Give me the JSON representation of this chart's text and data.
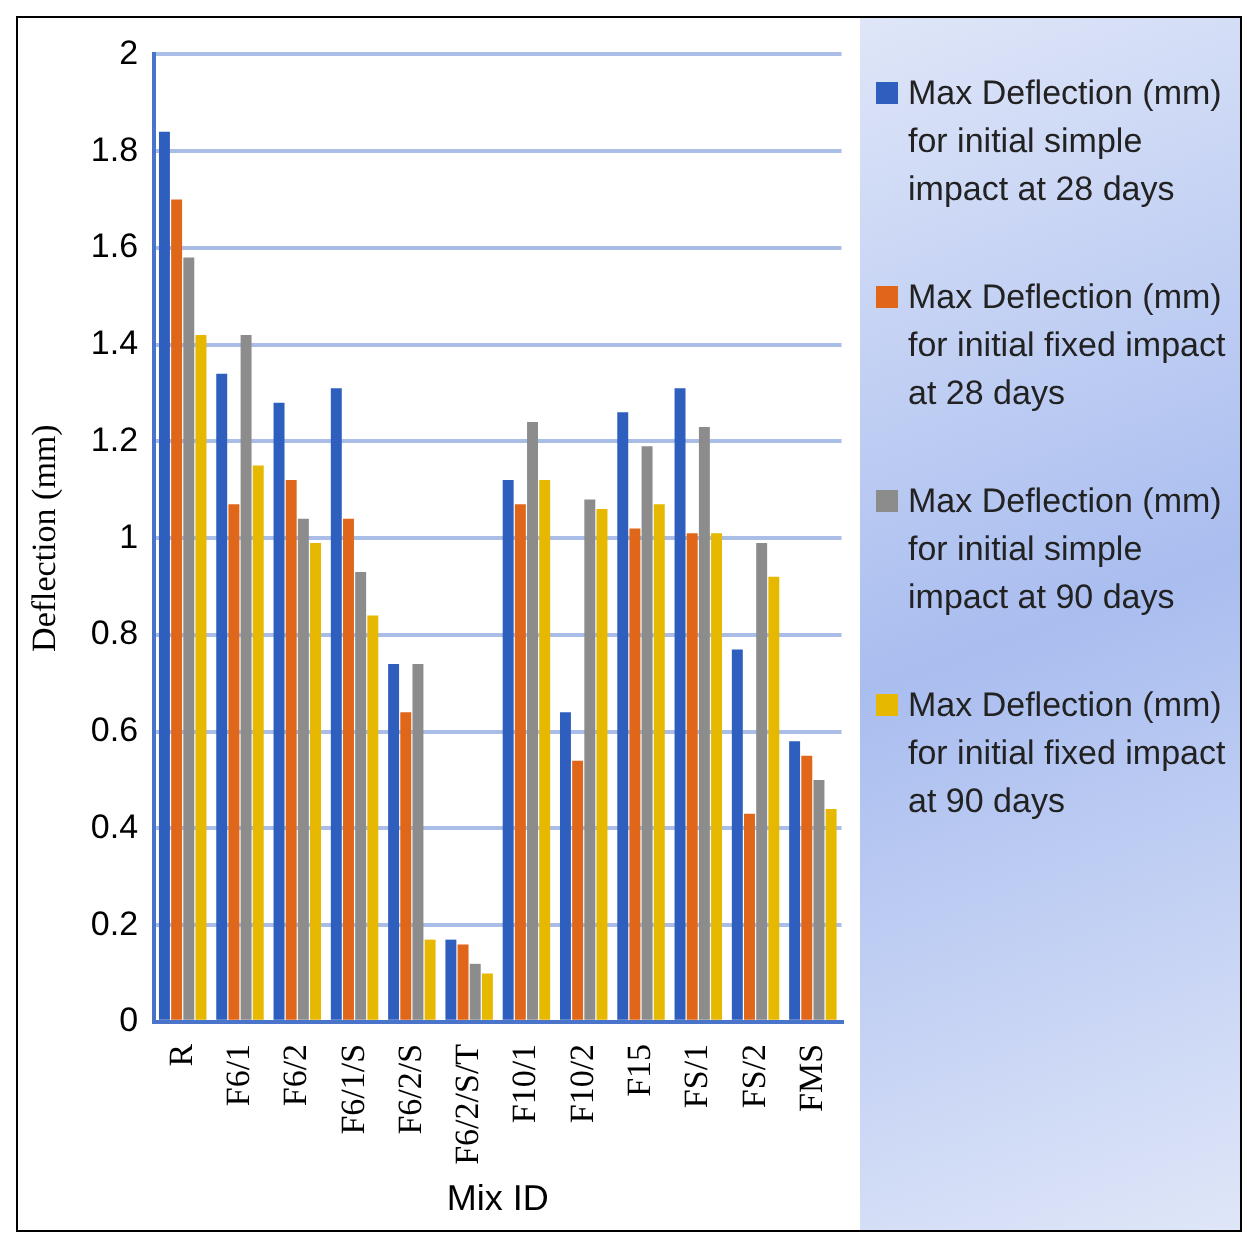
{
  "chart_data": {
    "type": "bar",
    "xlabel": "Mix ID",
    "ylabel": "Deflection (mm)",
    "categories": [
      "R",
      "F6/1",
      "F6/2",
      "F6/1/S",
      "F6/2/S",
      "F6/2/S/T",
      "F10/1",
      "F10/2",
      "F15",
      "FS/1",
      "FS/2",
      "FMS"
    ],
    "series": [
      {
        "name": "Max Deflection (mm) for initial simple impact at 28 days",
        "color": "#2e5fbf",
        "values": [
          1.84,
          1.34,
          1.28,
          1.31,
          0.74,
          0.17,
          1.12,
          0.64,
          1.26,
          1.31,
          0.77,
          0.58
        ]
      },
      {
        "name": "Max Deflection (mm) for initial fixed impact at 28 days",
        "color": "#e0661a",
        "values": [
          1.7,
          1.07,
          1.12,
          1.04,
          0.64,
          0.16,
          1.07,
          0.54,
          1.02,
          1.01,
          0.43,
          0.55
        ]
      },
      {
        "name": "Max Deflection (mm) for initial simple impact at 90 days",
        "color": "#8c8c8c",
        "values": [
          1.58,
          1.42,
          1.04,
          0.93,
          0.74,
          0.12,
          1.24,
          1.08,
          1.19,
          1.23,
          0.99,
          0.5
        ]
      },
      {
        "name": "Max Deflection (mm) for initial fixed impact at 90 days",
        "color": "#e6b800",
        "values": [
          1.42,
          1.15,
          0.99,
          0.84,
          0.17,
          0.1,
          1.12,
          1.06,
          1.07,
          1.01,
          0.92,
          0.44
        ]
      }
    ],
    "ylim": [
      0,
      2
    ],
    "yticks": [
      0,
      0.2,
      0.4,
      0.6,
      0.8,
      1,
      1.2,
      1.4,
      1.6,
      1.8,
      2
    ],
    "grid": "y",
    "legend": "right"
  }
}
